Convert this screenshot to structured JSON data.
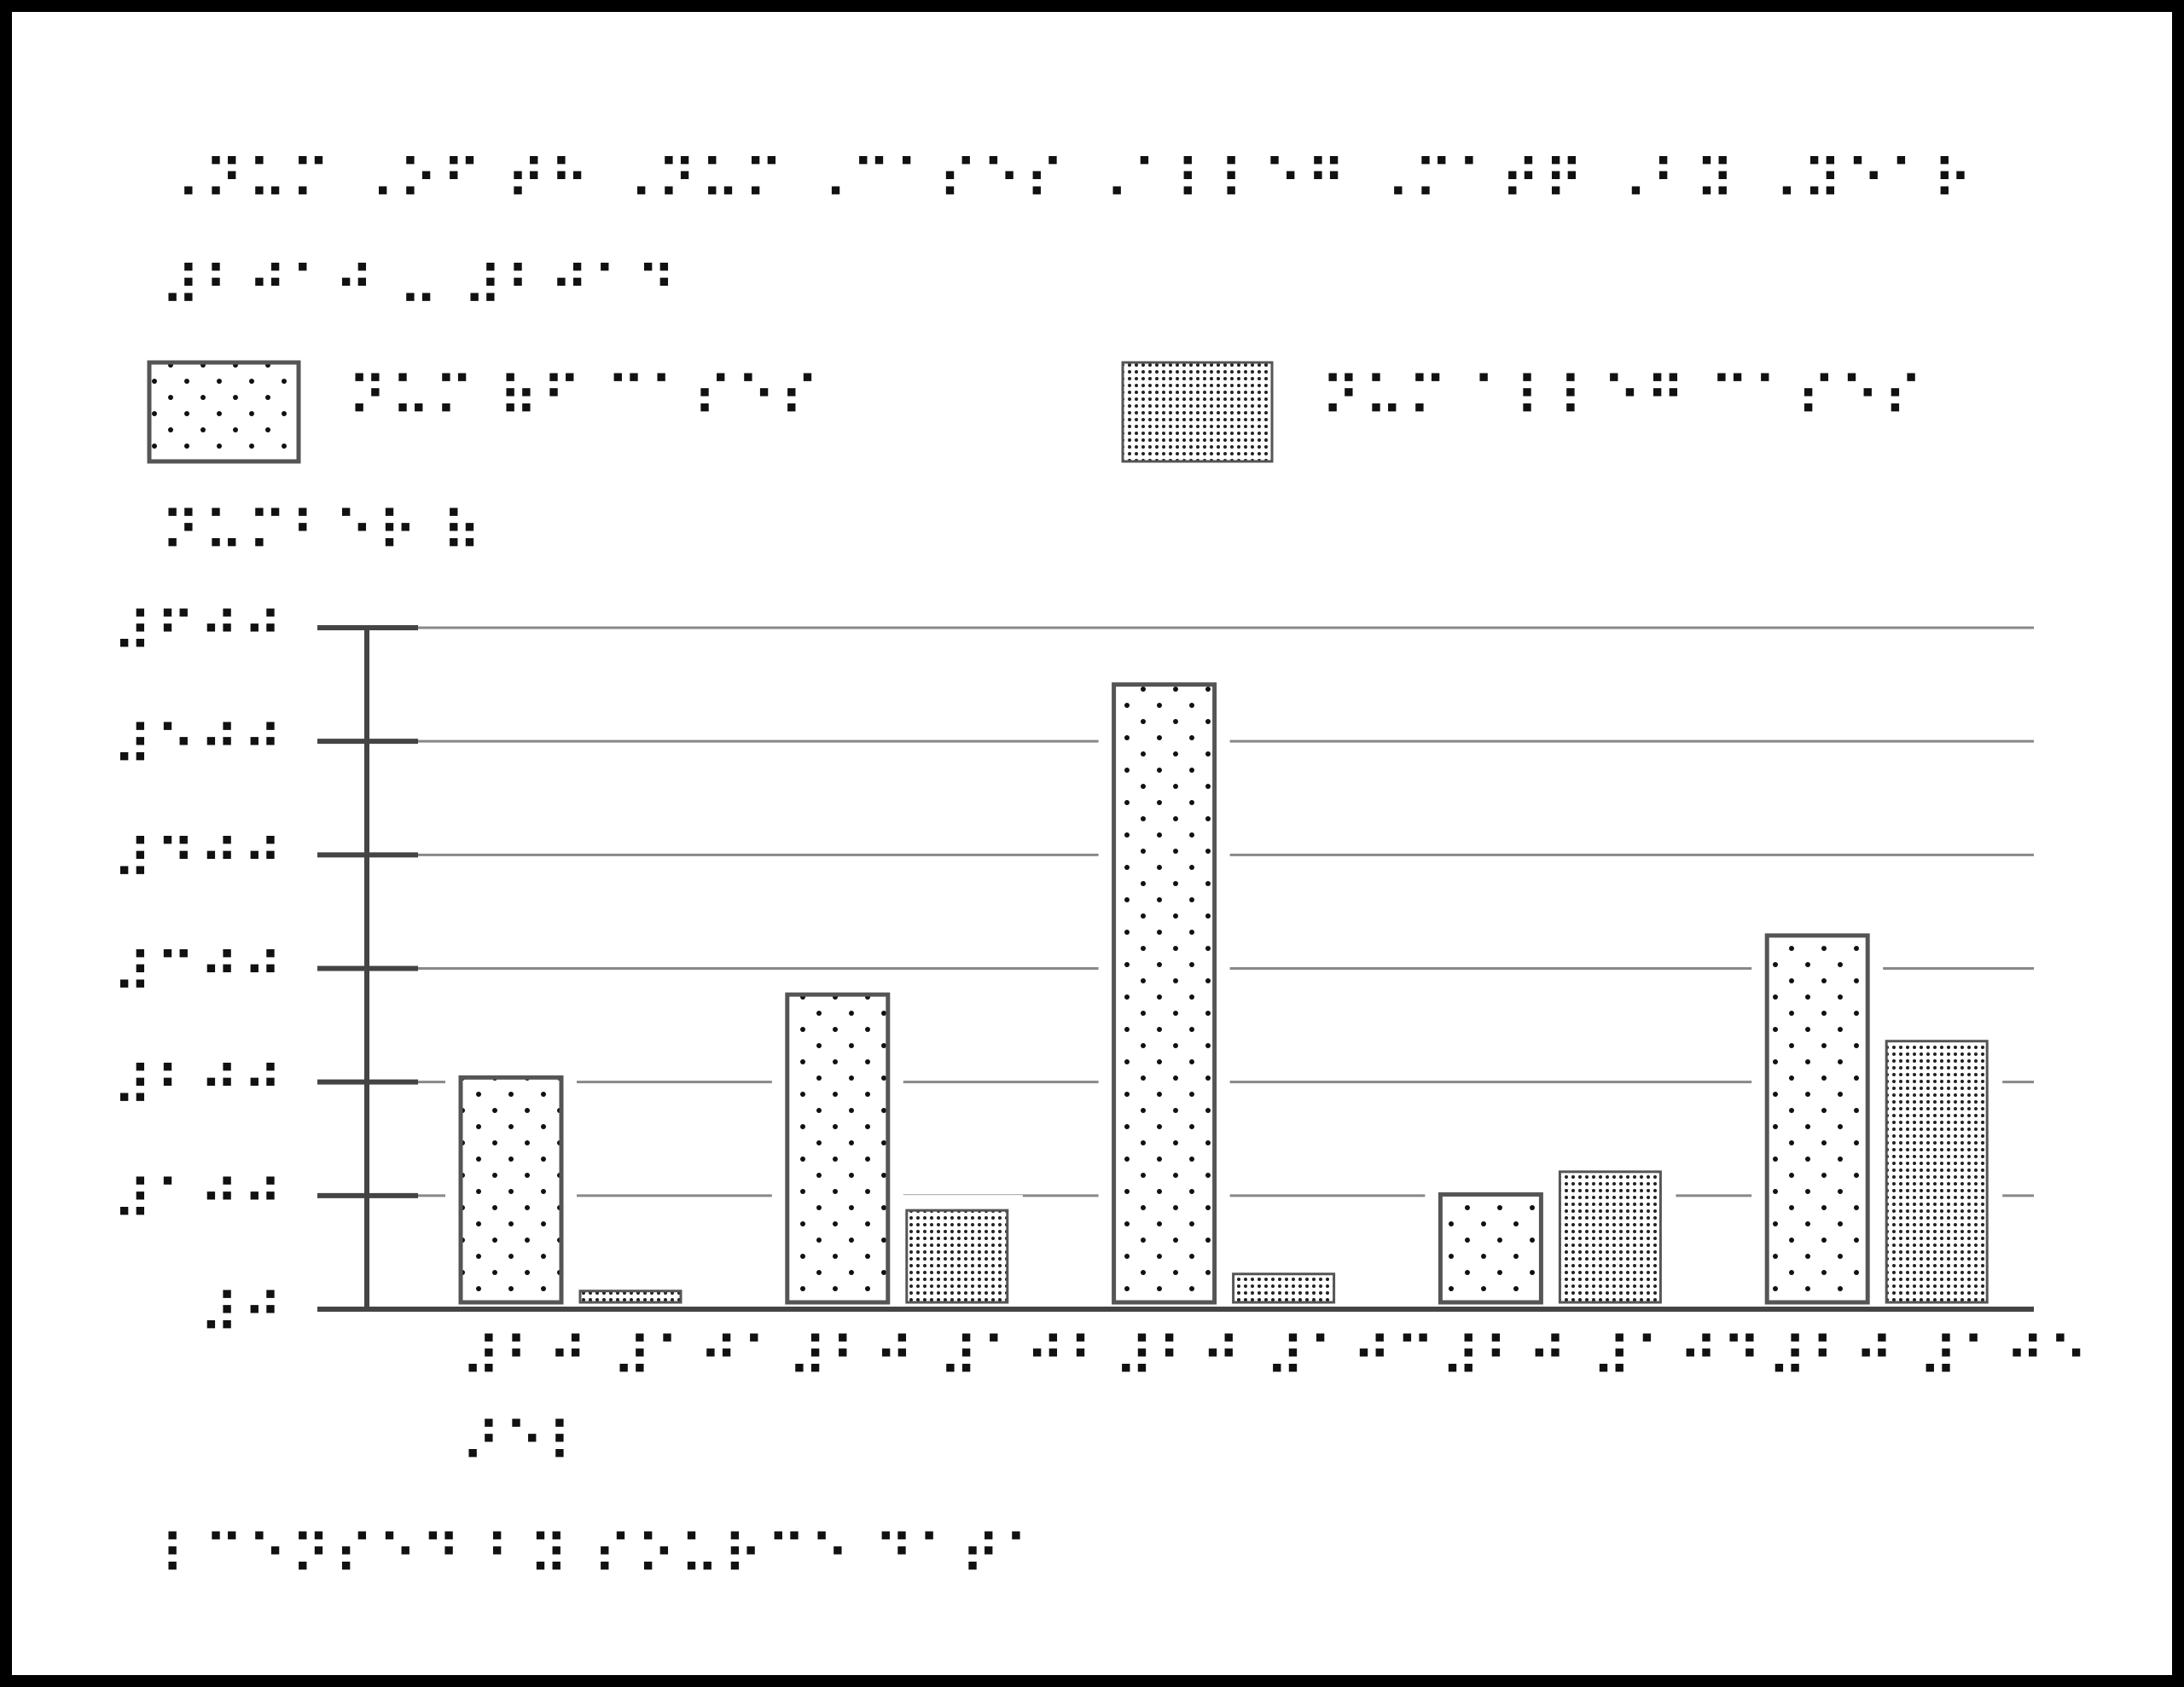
{
  "chart_data": {
    "type": "bar",
    "title": "⠠⠝⠥⠍ ⠠⠕⠋ ⠞⠓ ⠠⠝⠥⠍ ⠠⠉⠁⠎⠑⠎ ⠠⠁⠇⠇⠑⠛ ⠠⠍⠁⠞⠟ ⠠⠃⠽ ⠠⠽⠑⠁⠗ ⠼⠃⠚⠁⠚ ⠤ ⠼⠃⠚⠁⠙",
    "y_label": "⠝⠥⠍⠃⠑⠗ ⠷",
    "categories": [
      [
        "⠼⠃⠚ ⠼⠁⠚⠁",
        "⠜⠑⠇"
      ],
      [
        "⠼⠃⠚ ⠼⠁⠚⠃"
      ],
      [
        "⠼⠃⠚ ⠼⠁⠚⠉"
      ],
      [
        "⠼⠃⠚ ⠼⠁⠚⠙"
      ],
      [
        "⠼⠃⠚ ⠼⠁⠚⠑"
      ]
    ],
    "series": [
      {
        "name": "⠝⠥⠍ ⠷⠋ ⠉⠁⠎⠑⠎",
        "color": "#555555",
        "pattern": "sparse",
        "values": [
          204,
          277,
          550,
          101,
          329
        ]
      },
      {
        "name": "⠝⠥⠍ ⠁⠇⠇⠑⠛ ⠉⠁⠎⠑⠎",
        "color": "#555555",
        "pattern": "dense",
        "values": [
          16,
          87,
          31,
          121,
          236
        ]
      }
    ],
    "ylim": [
      0,
      600
    ],
    "yticks": [
      {
        "value": 0,
        "label": "⠼⠚"
      },
      {
        "value": 100,
        "label": "⠼⠁⠚⠚"
      },
      {
        "value": 200,
        "label": "⠼⠃⠚⠚"
      },
      {
        "value": 300,
        "label": "⠼⠉⠚⠚"
      },
      {
        "value": 400,
        "label": "⠼⠙⠚⠚"
      },
      {
        "value": 500,
        "label": "⠼⠑⠚⠚"
      },
      {
        "value": 600,
        "label": "⠼⠋⠚⠚"
      }
    ],
    "grid": true,
    "source": "⠇⠉⠑⠝⠎⠑⠙ ⠃⠽ ⠎⠕⠥⠗⠉⠑ ⠙⠁⠞⠁"
  }
}
